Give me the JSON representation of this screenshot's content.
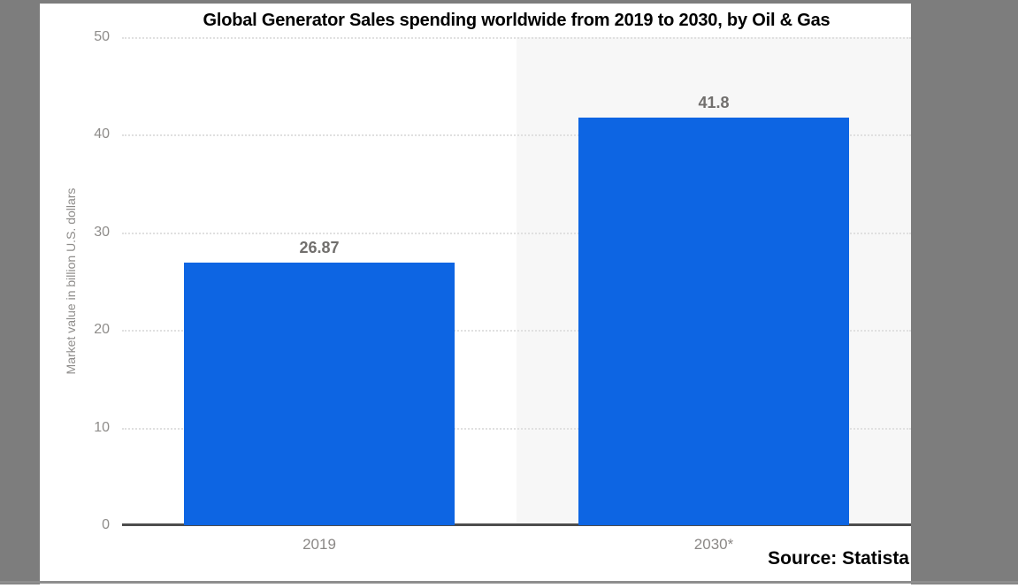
{
  "window": {
    "border_color": "#7d7d7d",
    "bottom_rule_color": "#8e8e8e"
  },
  "chart_data": {
    "type": "bar",
    "title": "Global Generator Sales spending worldwide from 2019 to 2030, by Oil & Gas",
    "ylabel": "Market value in billion U.S. dollars",
    "xlabel": "",
    "categories": [
      "2019",
      "2030*"
    ],
    "values": [
      26.87,
      41.8
    ],
    "value_labels": [
      "26.87",
      "41.8"
    ],
    "yticks": [
      0,
      10,
      20,
      30,
      40,
      50
    ],
    "ylim": [
      0,
      50
    ],
    "bar_color": "#0d65e3",
    "band_colors": [
      "#ffffff",
      "#f7f7f7"
    ],
    "gridlines": "dotted horizontal",
    "axis_line_color": "#4d4d4d",
    "tick_label_color": "#8e8c8a",
    "value_label_color": "#716f6d",
    "legend": "none"
  },
  "source": {
    "label": "Source: Statista"
  }
}
